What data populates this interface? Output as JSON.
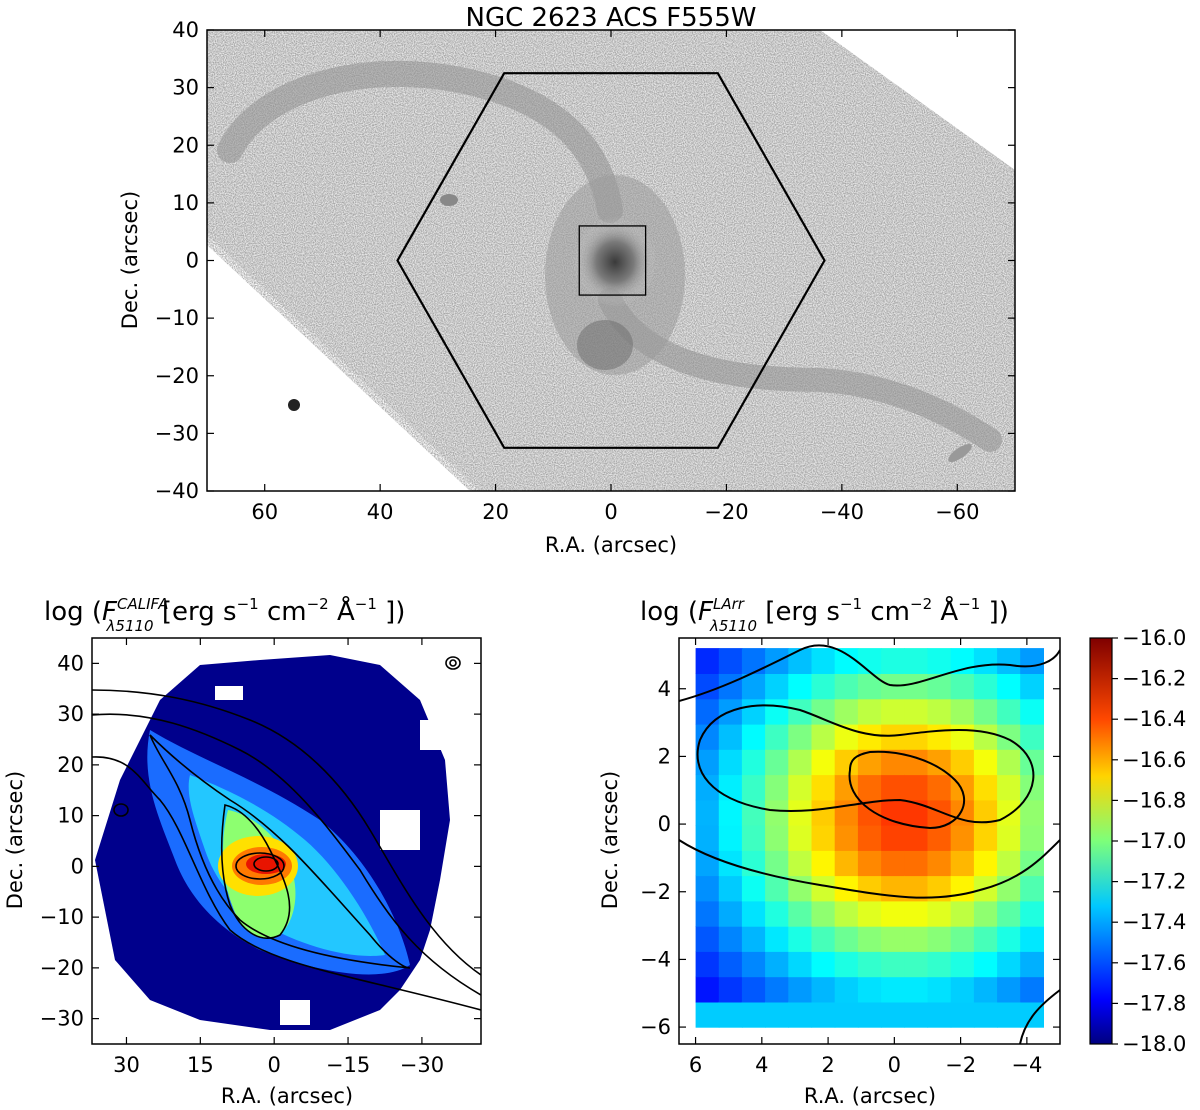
{
  "chart_data": [
    {
      "type": "heatmap",
      "title": "NGC 2623  ACS F555W",
      "xlabel": "R.A. (arcsec)",
      "ylabel": "Dec. (arcsec)",
      "xlim": [
        70,
        -70
      ],
      "ylim": [
        -40,
        40
      ],
      "xticks": [
        60,
        40,
        20,
        0,
        -20,
        -40,
        -60
      ],
      "xtick_labels": [
        "60",
        "40",
        "20",
        "0",
        "−20",
        "−40",
        "−60"
      ],
      "yticks": [
        40,
        30,
        20,
        10,
        0,
        -10,
        -20,
        -30,
        -40
      ],
      "ytick_labels": [
        "40",
        "30",
        "20",
        "10",
        "0",
        "−10",
        "−20",
        "−30",
        "−40"
      ],
      "colormap": "gray",
      "hexagon_vertices": [
        [
          37,
          0
        ],
        [
          18.5,
          32.5
        ],
        [
          -18.5,
          32.5
        ],
        [
          -37,
          0
        ],
        [
          -18.5,
          -32.5
        ],
        [
          18.5,
          -32.5
        ]
      ],
      "inner_box": {
        "x": [
          -6,
          5.5
        ],
        "y": [
          -6,
          6
        ]
      }
    },
    {
      "type": "heatmap",
      "title_main": "log (",
      "title_symbol": "F",
      "title_superscript": "CALIFA",
      "title_subscript": "λ5110",
      "title_units_start": " [erg s",
      "title_units_exp1": "−1",
      "title_units_mid1": " cm",
      "title_units_exp2": "−2",
      "title_units_mid2": " Å",
      "title_units_exp3": "−1",
      "title_units_end": " ])",
      "xlabel": "R.A. (arcsec)",
      "ylabel": "Dec. (arcsec)",
      "xlim": [
        37,
        -42
      ],
      "ylim": [
        -35,
        45
      ],
      "xticks": [
        30,
        15,
        0,
        -15,
        -30
      ],
      "xtick_labels": [
        "30",
        "15",
        "0",
        "−15",
        "−30"
      ],
      "yticks": [
        40,
        30,
        20,
        10,
        0,
        -10,
        -20,
        -30
      ],
      "ytick_labels": [
        "40",
        "30",
        "20",
        "10",
        "0",
        "−10",
        "−20",
        "−30"
      ],
      "colormap": "jet",
      "crange": [
        -18,
        -16
      ]
    },
    {
      "type": "heatmap",
      "title_main": "log (",
      "title_symbol": "F",
      "title_superscript": "LArr",
      "title_subscript": "λ5110",
      "title_units_start": " [erg s",
      "title_units_exp1": "−1",
      "title_units_mid1": "  cm",
      "title_units_exp2": "−2",
      "title_units_mid2": "  Å",
      "title_units_exp3": "−1",
      "title_units_end": " ])",
      "xlabel": "R.A. (arcsec)",
      "ylabel": "Dec. (arcsec)",
      "xlim": [
        6.5,
        -5
      ],
      "ylim": [
        -6.5,
        5.5
      ],
      "xticks": [
        6,
        4,
        2,
        0,
        -2,
        -4
      ],
      "xtick_labels": [
        "6",
        "4",
        "2",
        "0",
        "−2",
        "−4"
      ],
      "yticks": [
        4,
        2,
        0,
        -2,
        -4,
        -6
      ],
      "ytick_labels": [
        "4",
        "2",
        "0",
        "−2",
        "−4",
        "−6"
      ],
      "colormap": "jet",
      "crange": [
        -18,
        -16
      ],
      "colorbar_ticks": [
        -16.0,
        -16.2,
        -16.4,
        -16.6,
        -16.8,
        -17.0,
        -17.2,
        -17.4,
        -17.6,
        -17.8,
        -18.0
      ],
      "colorbar_labels": [
        "−16.0",
        "−16.2",
        "−16.4",
        "−16.6",
        "−16.8",
        "−17.0",
        "−17.2",
        "−17.4",
        "−17.6",
        "−17.8",
        "−18.0"
      ]
    }
  ]
}
